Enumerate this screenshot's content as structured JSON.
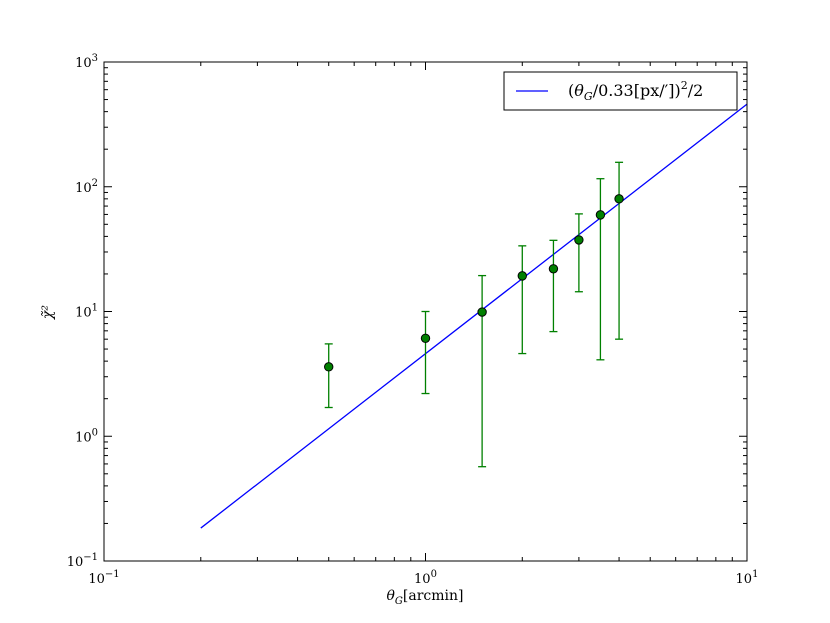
{
  "chart_data": {
    "type": "scatter",
    "xscale": "log",
    "yscale": "log",
    "xlim": [
      0.1,
      10
    ],
    "ylim": [
      0.1,
      1000
    ],
    "xlabel": "θ_G[arcmin]",
    "ylabel": "χ̃²",
    "x_ticks": [
      {
        "base": "10",
        "exp": "−1"
      },
      {
        "base": "10",
        "exp": "0"
      },
      {
        "base": "10",
        "exp": "1"
      }
    ],
    "y_ticks": [
      {
        "base": "10",
        "exp": "−1"
      },
      {
        "base": "10",
        "exp": "0"
      },
      {
        "base": "10",
        "exp": "1"
      },
      {
        "base": "10",
        "exp": "2"
      },
      {
        "base": "10",
        "exp": "3"
      }
    ],
    "legend": {
      "placement": "top-right",
      "label": "(θ_G/0.33[px/′])²/2"
    },
    "series": [
      {
        "name": "(θ_G/0.33[px/′])²/2",
        "kind": "line",
        "color": "#0000ff",
        "x_range": [
          0.2,
          10
        ],
        "formula": "y = (x/0.33)^2 / 2"
      },
      {
        "kind": "points_with_errorbars",
        "color": "#008000",
        "x": [
          0.5,
          1.0,
          1.5,
          2.0,
          2.5,
          3.0,
          3.5,
          4.0
        ],
        "y": [
          3.6,
          6.1,
          9.9,
          19.3,
          22.0,
          37.5,
          59.5,
          80.0
        ],
        "yerr_low": [
          1.7,
          2.2,
          0.57,
          4.6,
          6.9,
          14.4,
          4.1,
          6.0
        ],
        "yerr_high": [
          5.5,
          10.0,
          19.4,
          33.6,
          37.2,
          60.6,
          116.0,
          157.0
        ]
      }
    ]
  }
}
